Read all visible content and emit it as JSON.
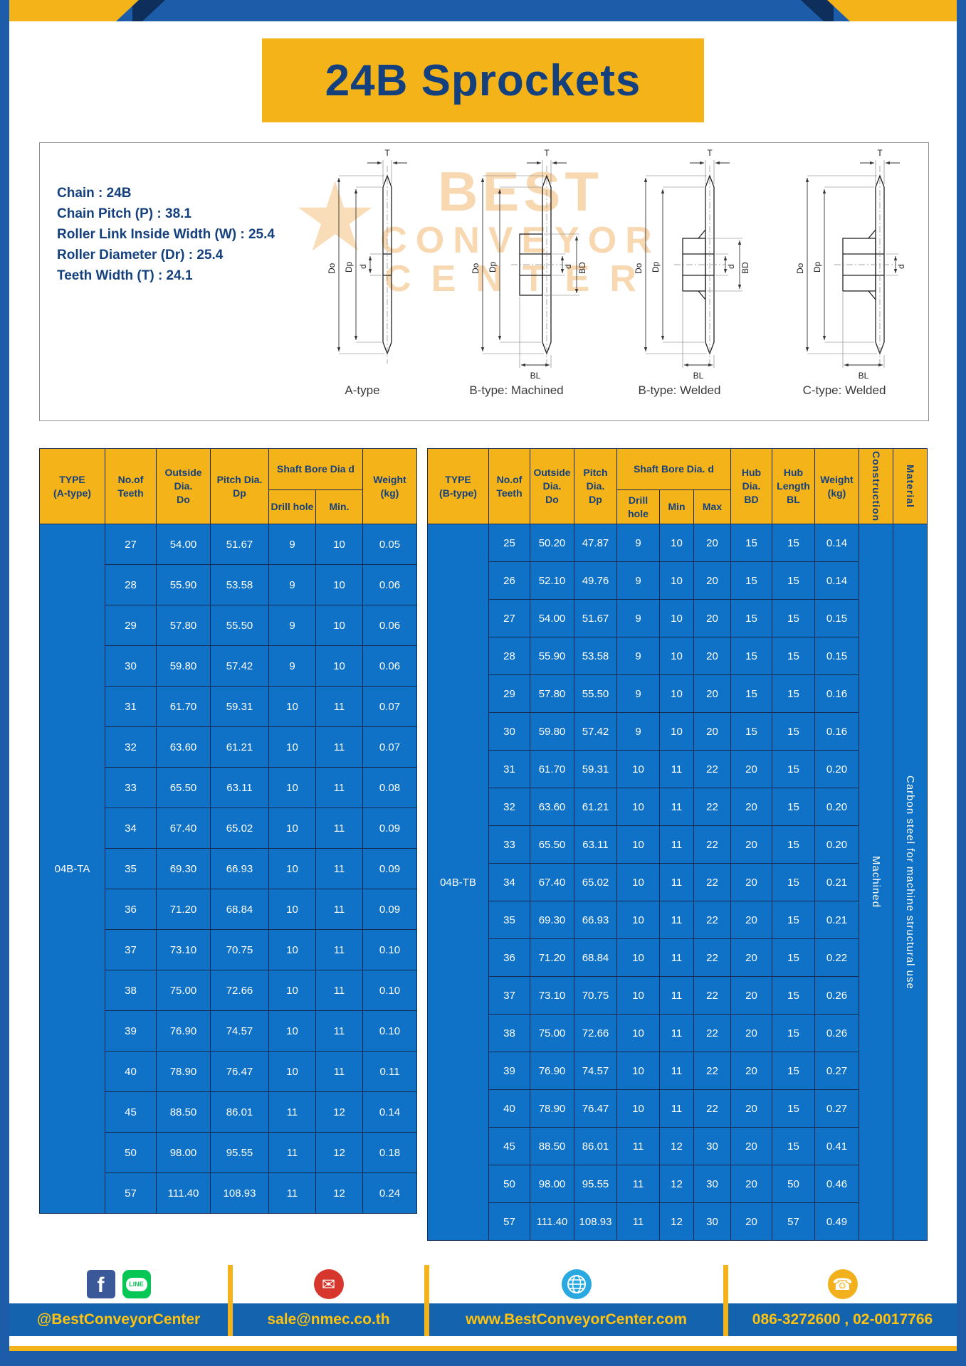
{
  "title": "24B Sprockets",
  "specs": {
    "lines": [
      "Chain  : 24B",
      "Chain Pitch (P)  :  38.1",
      "Roller Link Inside Width (W)  :  25.4",
      "Roller Diameter (Dr)  : 25.4",
      "Teeth Width (T)  :  24.1"
    ]
  },
  "diagrams": {
    "watermark": {
      "star": "★",
      "line1": "BEST",
      "line2": "CONVEYOR",
      "line3": "CENTER"
    },
    "captions": [
      "A-type",
      "B-type: Machined",
      "B-type: Welded",
      "C-type: Welded"
    ],
    "labels": {
      "t": "T",
      "do": "Do",
      "dp": "Dp",
      "d": "d",
      "bd": "BD",
      "bl": "BL"
    }
  },
  "table_a": {
    "headers": {
      "type": "TYPE\n(A-type)",
      "teeth": "No.of\nTeeth",
      "outside": "Outside\nDia.\nDo",
      "pitch": "Pitch Dia.\nDp",
      "shaft_bore": "Shaft Bore Dia d",
      "drill": "Drill hole",
      "min": "Min.",
      "weight": "Weight\n(kg)"
    },
    "type_label": "04B-TA",
    "rows": [
      [
        "27",
        "54.00",
        "51.67",
        "9",
        "10",
        "0.05"
      ],
      [
        "28",
        "55.90",
        "53.58",
        "9",
        "10",
        "0.06"
      ],
      [
        "29",
        "57.80",
        "55.50",
        "9",
        "10",
        "0.06"
      ],
      [
        "30",
        "59.80",
        "57.42",
        "9",
        "10",
        "0.06"
      ],
      [
        "31",
        "61.70",
        "59.31",
        "10",
        "11",
        "0.07"
      ],
      [
        "32",
        "63.60",
        "61.21",
        "10",
        "11",
        "0.07"
      ],
      [
        "33",
        "65.50",
        "63.11",
        "10",
        "11",
        "0.08"
      ],
      [
        "34",
        "67.40",
        "65.02",
        "10",
        "11",
        "0.09"
      ],
      [
        "35",
        "69.30",
        "66.93",
        "10",
        "11",
        "0.09"
      ],
      [
        "36",
        "71.20",
        "68.84",
        "10",
        "11",
        "0.09"
      ],
      [
        "37",
        "73.10",
        "70.75",
        "10",
        "11",
        "0.10"
      ],
      [
        "38",
        "75.00",
        "72.66",
        "10",
        "11",
        "0.10"
      ],
      [
        "39",
        "76.90",
        "74.57",
        "10",
        "11",
        "0.10"
      ],
      [
        "40",
        "78.90",
        "76.47",
        "10",
        "11",
        "0.11"
      ],
      [
        "45",
        "88.50",
        "86.01",
        "11",
        "12",
        "0.14"
      ],
      [
        "50",
        "98.00",
        "95.55",
        "11",
        "12",
        "0.18"
      ],
      [
        "57",
        "111.40",
        "108.93",
        "11",
        "12",
        "0.24"
      ]
    ]
  },
  "table_b": {
    "headers": {
      "type": "TYPE\n(B-type)",
      "teeth": "No.of\nTeeth",
      "outside": "Outside\nDia.\nDo",
      "pitch": "Pitch\nDia.\nDp",
      "shaft_bore": "Shaft Bore Dia. d",
      "drill": "Drill hole",
      "min": "Min",
      "max": "Max",
      "hub_dia": "Hub\nDia.\nBD",
      "hub_len": "Hub\nLength\nBL",
      "weight": "Weight\n(kg)",
      "construction": "Construction",
      "material": "Material"
    },
    "type_label": "04B-TB",
    "construction_value": "Machined",
    "material_value": "Carbon steel for machine structural use",
    "rows": [
      [
        "25",
        "50.20",
        "47.87",
        "9",
        "10",
        "20",
        "15",
        "15",
        "0.14"
      ],
      [
        "26",
        "52.10",
        "49.76",
        "9",
        "10",
        "20",
        "15",
        "15",
        "0.14"
      ],
      [
        "27",
        "54.00",
        "51.67",
        "9",
        "10",
        "20",
        "15",
        "15",
        "0.15"
      ],
      [
        "28",
        "55.90",
        "53.58",
        "9",
        "10",
        "20",
        "15",
        "15",
        "0.15"
      ],
      [
        "29",
        "57.80",
        "55.50",
        "9",
        "10",
        "20",
        "15",
        "15",
        "0.16"
      ],
      [
        "30",
        "59.80",
        "57.42",
        "9",
        "10",
        "20",
        "15",
        "15",
        "0.16"
      ],
      [
        "31",
        "61.70",
        "59.31",
        "10",
        "11",
        "22",
        "20",
        "15",
        "0.20"
      ],
      [
        "32",
        "63.60",
        "61.21",
        "10",
        "11",
        "22",
        "20",
        "15",
        "0.20"
      ],
      [
        "33",
        "65.50",
        "63.11",
        "10",
        "11",
        "22",
        "20",
        "15",
        "0.20"
      ],
      [
        "34",
        "67.40",
        "65.02",
        "10",
        "11",
        "22",
        "20",
        "15",
        "0.21"
      ],
      [
        "35",
        "69.30",
        "66.93",
        "10",
        "11",
        "22",
        "20",
        "15",
        "0.21"
      ],
      [
        "36",
        "71.20",
        "68.84",
        "10",
        "11",
        "22",
        "20",
        "15",
        "0.22"
      ],
      [
        "37",
        "73.10",
        "70.75",
        "10",
        "11",
        "22",
        "20",
        "15",
        "0.26"
      ],
      [
        "38",
        "75.00",
        "72.66",
        "10",
        "11",
        "22",
        "20",
        "15",
        "0.26"
      ],
      [
        "39",
        "76.90",
        "74.57",
        "10",
        "11",
        "22",
        "20",
        "15",
        "0.27"
      ],
      [
        "40",
        "78.90",
        "76.47",
        "10",
        "11",
        "22",
        "20",
        "15",
        "0.27"
      ],
      [
        "45",
        "88.50",
        "86.01",
        "11",
        "12",
        "30",
        "20",
        "15",
        "0.41"
      ],
      [
        "50",
        "98.00",
        "95.55",
        "11",
        "12",
        "30",
        "20",
        "50",
        "0.46"
      ],
      [
        "57",
        "111.40",
        "108.93",
        "11",
        "12",
        "30",
        "20",
        "57",
        "0.49"
      ]
    ]
  },
  "footer": {
    "facebook_glyph": "f",
    "line_label": "LINE",
    "mail_glyph": "✉",
    "phone_glyph": "☎",
    "social_handle": "@BestConveyorCenter",
    "email": "sale@nmec.co.th",
    "website": "www.BestConveyorCenter.com",
    "phones": "086-3272600 , 02-0017766"
  },
  "colors": {
    "accent_yellow": "#F5B31A",
    "navy": "#14407D",
    "table_blue": "#0F72C6",
    "frame_blue": "#1D5CA8",
    "footer_blue": "#1463AE"
  }
}
